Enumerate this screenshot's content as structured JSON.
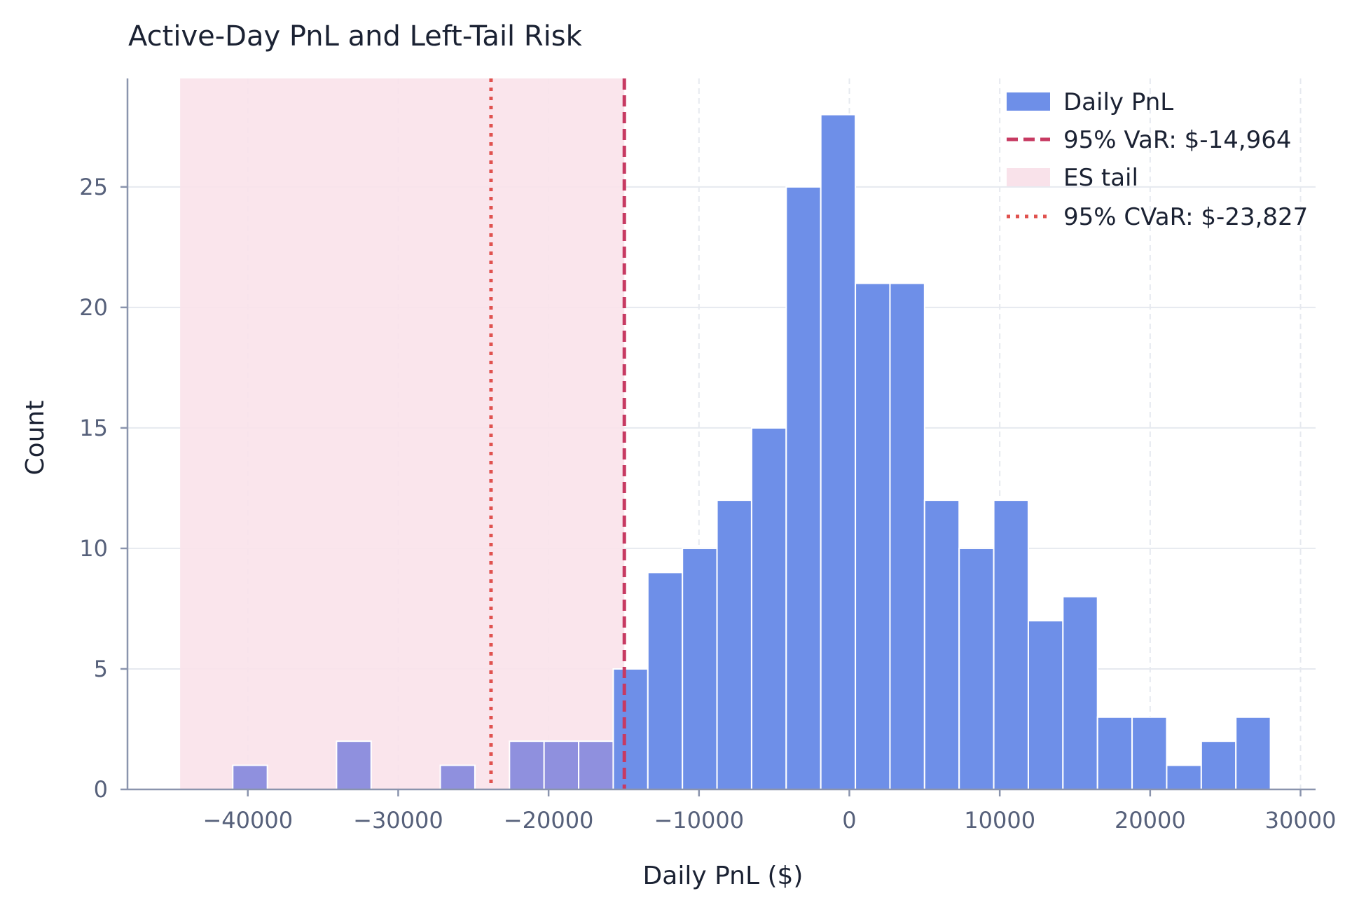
{
  "chart_data": {
    "type": "bar",
    "title": "Active-Day PnL and Left-Tail Risk",
    "xlabel": "Daily PnL ($)",
    "ylabel": "Count",
    "xlim": [
      -48000,
      31000
    ],
    "ylim": [
      0,
      29.5
    ],
    "xticks": [
      -40000,
      -30000,
      -20000,
      -10000,
      0,
      10000,
      20000,
      30000
    ],
    "yticks": [
      0,
      5,
      10,
      15,
      20,
      25
    ],
    "grid": true,
    "legend_position": "top-right",
    "bin_width": 2300,
    "bins": [
      {
        "start": -41000,
        "count": 1
      },
      {
        "start": -34100,
        "count": 2
      },
      {
        "start": -27200,
        "count": 1
      },
      {
        "start": -22600,
        "count": 2
      },
      {
        "start": -20300,
        "count": 2
      },
      {
        "start": -18000,
        "count": 2
      },
      {
        "start": -15700,
        "count": 5
      },
      {
        "start": -13400,
        "count": 9
      },
      {
        "start": -11100,
        "count": 10
      },
      {
        "start": -8800,
        "count": 12
      },
      {
        "start": -6500,
        "count": 15
      },
      {
        "start": -4200,
        "count": 25
      },
      {
        "start": -1900,
        "count": 28
      },
      {
        "start": 400,
        "count": 21
      },
      {
        "start": 2700,
        "count": 21
      },
      {
        "start": 5000,
        "count": 12
      },
      {
        "start": 7300,
        "count": 10
      },
      {
        "start": 9600,
        "count": 12
      },
      {
        "start": 11900,
        "count": 7
      },
      {
        "start": 14200,
        "count": 8
      },
      {
        "start": 16500,
        "count": 3
      },
      {
        "start": 18800,
        "count": 3
      },
      {
        "start": 21100,
        "count": 1
      },
      {
        "start": 23400,
        "count": 2
      },
      {
        "start": 25700,
        "count": 3
      }
    ],
    "var_95": -14964,
    "cvar_95": -23827,
    "es_tail_range": [
      -44500,
      -14964
    ],
    "legend": [
      {
        "label": "Daily PnL",
        "style": "bar"
      },
      {
        "label": "95% VaR: $-14,964",
        "style": "dashed"
      },
      {
        "label": "ES tail",
        "style": "shade"
      },
      {
        "label": "95% CVaR: $-23,827",
        "style": "dotted"
      }
    ],
    "colors": {
      "bar": "#6e8fe8",
      "bar_in_tail": "#8f90de",
      "var_line": "#c73a62",
      "cvar_line": "#e0524f",
      "tail_shade": "#f9e2ea",
      "grid": "#e6e9ef",
      "axis": "#8a94ad"
    }
  }
}
